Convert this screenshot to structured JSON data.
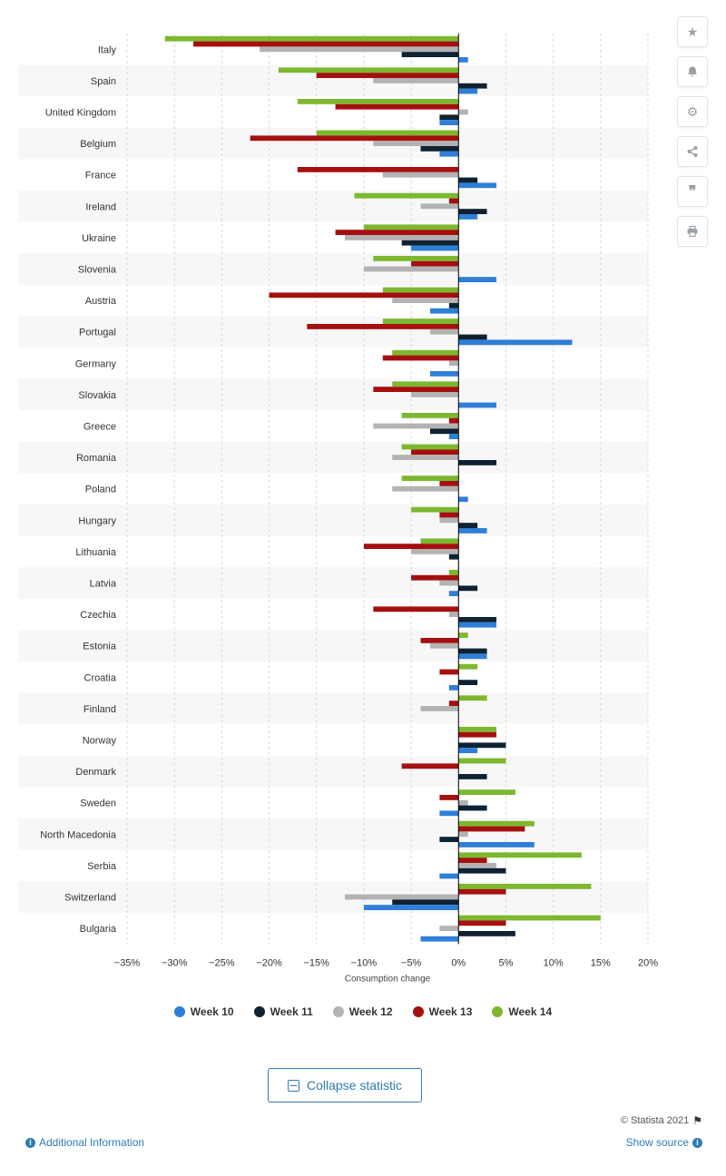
{
  "chart_data": {
    "type": "bar",
    "orientation": "horizontal",
    "xlabel": "Consumption change",
    "xlim": [
      -35,
      20
    ],
    "xticks": [
      -35,
      -30,
      -25,
      -20,
      -15,
      -10,
      -5,
      0,
      5,
      10,
      15,
      20
    ],
    "tick_labels": [
      "−35%",
      "−30%",
      "−25%",
      "−20%",
      "−15%",
      "−10%",
      "−5%",
      "0%",
      "5%",
      "10%",
      "15%",
      "20%"
    ],
    "legend_position": "bottom",
    "categories": [
      "Italy",
      "Spain",
      "United Kingdom",
      "Belgium",
      "France",
      "Ireland",
      "Ukraine",
      "Slovenia",
      "Austria",
      "Portugal",
      "Germany",
      "Slovakia",
      "Greece",
      "Romania",
      "Poland",
      "Hungary",
      "Lithuania",
      "Latvia",
      "Czechia",
      "Estonia",
      "Croatia",
      "Finland",
      "Norway",
      "Denmark",
      "Sweden",
      "North Macedonia",
      "Serbia",
      "Switzerland",
      "Bulgaria"
    ],
    "series": [
      {
        "name": "Week 14",
        "color": "#7cb82f",
        "values": [
          -31,
          -19,
          -17,
          -15,
          0,
          -11,
          -10,
          -9,
          -8,
          -8,
          -7,
          -7,
          -6,
          -6,
          -6,
          -5,
          -4,
          -1,
          0,
          1,
          2,
          3,
          4,
          5,
          6,
          8,
          13,
          14,
          15
        ]
      },
      {
        "name": "Week 13",
        "color": "#a50f0f",
        "values": [
          -28,
          -15,
          -13,
          -22,
          -17,
          -1,
          -13,
          -5,
          -20,
          -16,
          -8,
          -9,
          -1,
          -5,
          -2,
          -2,
          -10,
          -5,
          -9,
          -4,
          -2,
          -1,
          4,
          -6,
          -2,
          7,
          3,
          5,
          5
        ]
      },
      {
        "name": "Week 12",
        "color": "#b3b3b3",
        "values": [
          -21,
          -9,
          1,
          -9,
          -8,
          -4,
          -12,
          -10,
          -7,
          -3,
          -1,
          -5,
          -9,
          -7,
          -7,
          -2,
          -5,
          -2,
          -1,
          -3,
          0,
          -4,
          0,
          0,
          1,
          1,
          4,
          -12,
          -2
        ]
      },
      {
        "name": "Week 11",
        "color": "#0e2233",
        "values": [
          -6,
          3,
          -2,
          -4,
          2,
          3,
          -6,
          0,
          -1,
          3,
          0,
          0,
          -3,
          4,
          0,
          2,
          -1,
          2,
          4,
          3,
          2,
          0,
          5,
          3,
          3,
          -2,
          5,
          -7,
          6
        ]
      },
      {
        "name": "Week 10",
        "color": "#2f7ed8",
        "values": [
          1,
          2,
          -2,
          -2,
          4,
          2,
          -5,
          4,
          -3,
          12,
          -3,
          4,
          -1,
          0,
          1,
          3,
          0,
          -1,
          4,
          3,
          -1,
          0,
          2,
          0,
          -2,
          8,
          -2,
          -10,
          -4
        ]
      }
    ]
  },
  "legend": [
    {
      "name": "Week 10",
      "color": "#2f7ed8"
    },
    {
      "name": "Week 11",
      "color": "#0e2233"
    },
    {
      "name": "Week 12",
      "color": "#b3b3b3"
    },
    {
      "name": "Week 13",
      "color": "#a50f0f"
    },
    {
      "name": "Week 14",
      "color": "#7cb82f"
    }
  ],
  "tools": {
    "star": "star-icon",
    "bell": "bell-icon",
    "gear": "gear-icon",
    "share": "share-icon",
    "quote": "quote-icon",
    "print": "print-icon"
  },
  "collapse_label": "Collapse statistic",
  "copyright": "© Statista 2021",
  "additional_info": "Additional Information",
  "show_source": "Show source"
}
